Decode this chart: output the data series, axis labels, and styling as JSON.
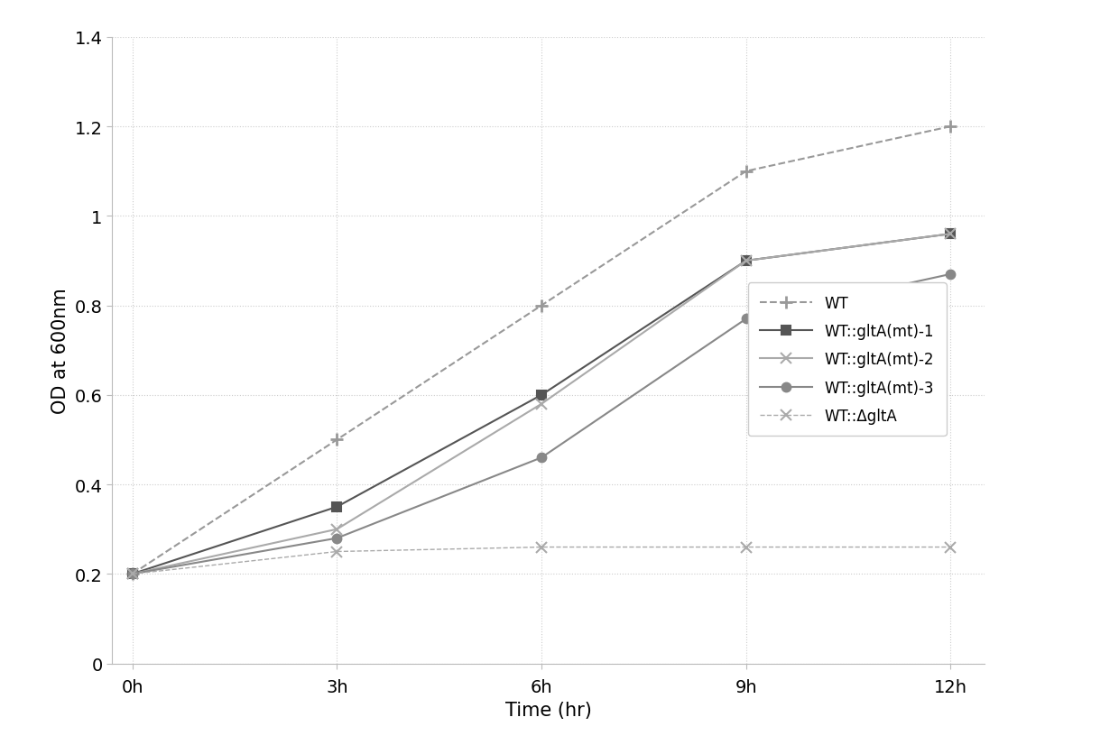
{
  "x_values": [
    0,
    3,
    6,
    9,
    12
  ],
  "x_tick_labels": [
    "0h",
    "3h",
    "6h",
    "9h",
    "12h"
  ],
  "series": [
    {
      "name": "WT",
      "y": [
        0.2,
        0.5,
        0.8,
        1.1,
        1.2
      ],
      "color": "#999999",
      "linestyle": "dashed",
      "marker": "+",
      "linewidth": 1.5,
      "markersize": 10,
      "markeredgewidth": 2.0
    },
    {
      "name": "WT::gltA(mt)-1",
      "y": [
        0.2,
        0.35,
        0.6,
        0.9,
        0.96
      ],
      "color": "#555555",
      "linestyle": "solid",
      "marker": "s",
      "linewidth": 1.5,
      "markersize": 7,
      "markeredgewidth": 1.5
    },
    {
      "name": "WT::gltA(mt)-2",
      "y": [
        0.2,
        0.3,
        0.58,
        0.9,
        0.96
      ],
      "color": "#aaaaaa",
      "linestyle": "solid",
      "marker": "x",
      "linewidth": 1.5,
      "markersize": 8,
      "markeredgewidth": 1.5
    },
    {
      "name": "WT::gltA(mt)-3",
      "y": [
        0.2,
        0.28,
        0.46,
        0.77,
        0.87
      ],
      "color": "#888888",
      "linestyle": "solid",
      "marker": "o",
      "linewidth": 1.5,
      "markersize": 7,
      "markeredgewidth": 1.5
    },
    {
      "name": "WT::ΔgltA",
      "y": [
        0.2,
        0.25,
        0.26,
        0.26,
        0.26
      ],
      "color": "#aaaaaa",
      "linestyle": "dashed",
      "marker": "x",
      "linewidth": 1.0,
      "markersize": 9,
      "markeredgewidth": 1.5
    }
  ],
  "ylabel": "OD at 600nm",
  "xlabel": "Time (hr)",
  "ylim": [
    0,
    1.4
  ],
  "xlim": [
    -0.3,
    12.5
  ],
  "yticks": [
    0,
    0.2,
    0.4,
    0.6,
    0.8,
    1.0,
    1.2,
    1.4
  ],
  "ytick_labels": [
    "0",
    "0.2",
    "0.4",
    "0.6",
    "0.8",
    "1",
    "1.2",
    "1.4"
  ],
  "grid_color": "#cccccc",
  "background_color": "#ffffff",
  "label_fontsize": 15,
  "tick_fontsize": 14,
  "legend_fontsize": 12
}
